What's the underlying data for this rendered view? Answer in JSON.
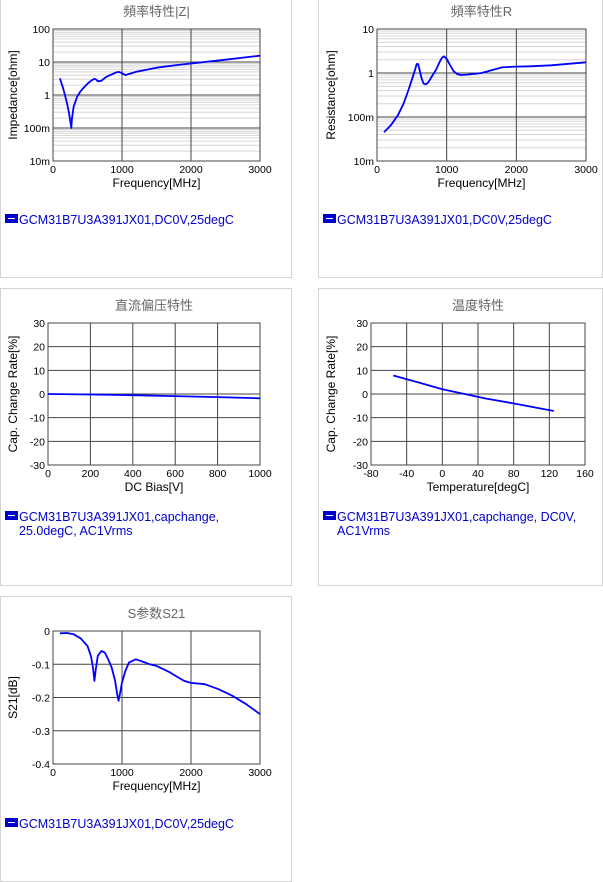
{
  "chart_data": [
    {
      "id": "impedance",
      "type": "line",
      "title": "頻率特性|Z|",
      "xlabel": "Frequency[MHz]",
      "ylabel": "Impedance[ohm]",
      "xscale": "linear",
      "yscale": "log",
      "xlim": [
        0,
        3000
      ],
      "ylim": [
        0.01,
        100
      ],
      "xticks": [
        0,
        1000,
        2000,
        3000
      ],
      "xtick_labels": [
        "0",
        "1000",
        "2000",
        "3000"
      ],
      "yticks": [
        0.01,
        0.1,
        1,
        10,
        100
      ],
      "ytick_labels": [
        "10m",
        "100m",
        "1",
        "10",
        "100"
      ],
      "grid": true,
      "minor_grid": true,
      "color": "#0000ff",
      "legend": "GCM31B7U3A391JX01,DC0V,25degC",
      "x": [
        100,
        150,
        200,
        230,
        250,
        265,
        275,
        300,
        350,
        400,
        450,
        500,
        550,
        600,
        620,
        650,
        700,
        750,
        800,
        850,
        900,
        950,
        1000,
        1050,
        1200,
        1500,
        1800,
        2000,
        2500,
        3000
      ],
      "y": [
        3.2,
        1.5,
        0.6,
        0.3,
        0.16,
        0.1,
        0.2,
        0.45,
        0.9,
        1.3,
        1.7,
        2.2,
        2.7,
        3.1,
        3.0,
        2.6,
        2.7,
        3.3,
        3.8,
        4.2,
        4.7,
        5.0,
        4.6,
        4.0,
        5.0,
        6.7,
        8.1,
        9.0,
        11.7,
        15.5
      ]
    },
    {
      "id": "resistance",
      "type": "line",
      "title": "頻率特性R",
      "xlabel": "Frequency[MHz]",
      "ylabel": "Resistance[ohm]",
      "xscale": "linear",
      "yscale": "log",
      "xlim": [
        0,
        3000
      ],
      "ylim": [
        0.01,
        10
      ],
      "xticks": [
        0,
        1000,
        2000,
        3000
      ],
      "xtick_labels": [
        "0",
        "1000",
        "2000",
        "3000"
      ],
      "yticks": [
        0.01,
        0.1,
        1,
        10
      ],
      "ytick_labels": [
        "10m",
        "100m",
        "1",
        "10"
      ],
      "grid": true,
      "minor_grid": true,
      "color": "#0000ff",
      "legend": "GCM31B7U3A391JX01,DC0V,25degC",
      "x": [
        100,
        200,
        300,
        380,
        450,
        500,
        540,
        570,
        590,
        610,
        640,
        670,
        700,
        730,
        760,
        800,
        850,
        900,
        930,
        960,
        1000,
        1050,
        1100,
        1150,
        1200,
        1300,
        1500,
        1800,
        2000,
        2200,
        2500,
        3000
      ],
      "y": [
        0.045,
        0.065,
        0.11,
        0.2,
        0.4,
        0.7,
        1.1,
        1.6,
        1.6,
        1.2,
        0.75,
        0.57,
        0.55,
        0.6,
        0.7,
        0.9,
        1.2,
        1.8,
        2.2,
        2.4,
        2.1,
        1.5,
        1.1,
        0.95,
        0.9,
        0.92,
        1.0,
        1.35,
        1.4,
        1.42,
        1.5,
        1.75
      ]
    },
    {
      "id": "dcbias",
      "type": "line",
      "title": "直流偏压特性",
      "xlabel": "DC Bias[V]",
      "ylabel": "Cap. Change Rate[%]",
      "xscale": "linear",
      "yscale": "linear",
      "xlim": [
        0,
        1000
      ],
      "ylim": [
        -30,
        30
      ],
      "xticks": [
        0,
        200,
        400,
        600,
        800,
        1000
      ],
      "xtick_labels": [
        "0",
        "200",
        "400",
        "600",
        "800",
        "1000"
      ],
      "yticks": [
        -30,
        -20,
        -10,
        0,
        10,
        20,
        30
      ],
      "ytick_labels": [
        "-30",
        "-20",
        "-10",
        "0",
        "10",
        "20",
        "30"
      ],
      "grid": true,
      "minor_grid": false,
      "color": "#0000ff",
      "legend": "GCM31B7U3A391JX01,capchange,\n25.0degC, AC1Vrms",
      "x": [
        0,
        200,
        400,
        600,
        800,
        1000
      ],
      "y": [
        0,
        -0.2,
        -0.5,
        -0.9,
        -1.3,
        -1.8
      ]
    },
    {
      "id": "temperature",
      "type": "line",
      "title": "温度特性",
      "xlabel": "Temperature[degC]",
      "ylabel": "Cap. Change Rate[%]",
      "xscale": "linear",
      "yscale": "linear",
      "xlim": [
        -80,
        160
      ],
      "ylim": [
        -30,
        30
      ],
      "xticks": [
        -80,
        -40,
        0,
        40,
        80,
        120,
        160
      ],
      "xtick_labels": [
        "-80",
        "-40",
        "0",
        "40",
        "80",
        "120",
        "160"
      ],
      "yticks": [
        -30,
        -20,
        -10,
        0,
        10,
        20,
        30
      ],
      "ytick_labels": [
        "-30",
        "-20",
        "-10",
        "0",
        "10",
        "20",
        "30"
      ],
      "grid": true,
      "minor_grid": false,
      "color": "#0000ff",
      "legend": "GCM31B7U3A391JX01,capchange, DC0V,\nAC1Vrms",
      "x": [
        -55,
        -25,
        0,
        25,
        50,
        85,
        125
      ],
      "y": [
        7.8,
        4.7,
        2.0,
        0,
        -2.0,
        -4.3,
        -7.2
      ]
    },
    {
      "id": "s21",
      "type": "line",
      "title": "S参数S21",
      "xlabel": "Frequency[MHz]",
      "ylabel": "S21[dB]",
      "xscale": "linear",
      "yscale": "linear",
      "xlim": [
        0,
        3000
      ],
      "ylim": [
        -0.4,
        0
      ],
      "xticks": [
        0,
        1000,
        2000,
        3000
      ],
      "xtick_labels": [
        "0",
        "1000",
        "2000",
        "3000"
      ],
      "yticks": [
        -0.4,
        -0.3,
        -0.2,
        -0.1,
        0
      ],
      "ytick_labels": [
        "-0.4",
        "-0.3",
        "-0.2",
        "-0.1",
        "0"
      ],
      "grid": true,
      "minor_grid": false,
      "color": "#0000ff",
      "legend": "GCM31B7U3A391JX01,DC0V,25degC",
      "x": [
        100,
        200,
        300,
        400,
        500,
        550,
        580,
        600,
        620,
        650,
        700,
        750,
        800,
        850,
        900,
        930,
        950,
        970,
        1000,
        1050,
        1100,
        1200,
        1300,
        1400,
        1500,
        1600,
        1700,
        1800,
        1900,
        2000,
        2200,
        2400,
        2600,
        2800,
        3000
      ],
      "y": [
        -0.007,
        -0.006,
        -0.01,
        -0.022,
        -0.045,
        -0.075,
        -0.11,
        -0.15,
        -0.115,
        -0.075,
        -0.06,
        -0.065,
        -0.085,
        -0.11,
        -0.15,
        -0.19,
        -0.21,
        -0.19,
        -0.155,
        -0.12,
        -0.095,
        -0.085,
        -0.092,
        -0.1,
        -0.105,
        -0.115,
        -0.125,
        -0.138,
        -0.15,
        -0.156,
        -0.16,
        -0.175,
        -0.195,
        -0.22,
        -0.25
      ]
    }
  ]
}
